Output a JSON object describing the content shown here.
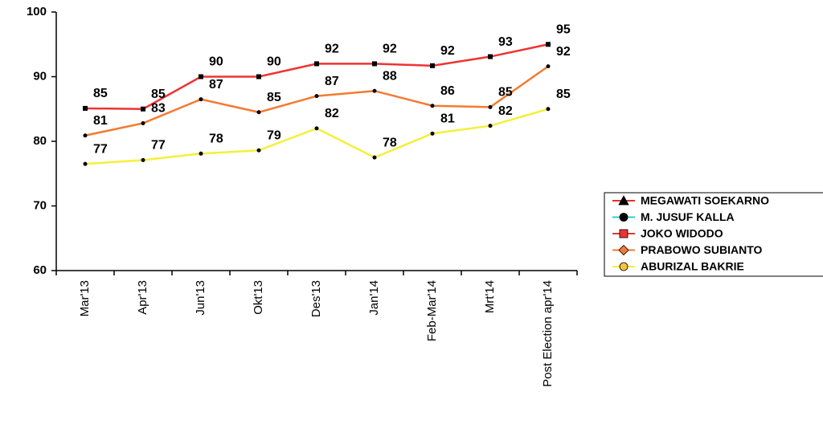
{
  "chart_data": {
    "type": "line",
    "categories": [
      "Mar'13",
      "Apr'13",
      "Jun'13",
      "Okt'13",
      "Des'13",
      "Jan'14",
      "Feb-Mar'14",
      "Mrt'14",
      "Post Election apr'14"
    ],
    "ylim": [
      60,
      100
    ],
    "yticks": [
      60,
      70,
      80,
      90,
      100
    ],
    "legend": "right",
    "series": [
      {
        "name": "MEGAWATI SOEKARNO",
        "color": "#e53030",
        "marker": "triangle",
        "marker_color": "#000000",
        "values": [
          null,
          null,
          null,
          null,
          null,
          null,
          null,
          null,
          null
        ]
      },
      {
        "name": "M. JUSUF KALLA",
        "color": "#33cccc",
        "marker": "circle",
        "marker_color": "#000000",
        "values": [
          null,
          null,
          null,
          null,
          null,
          null,
          null,
          null,
          null
        ]
      },
      {
        "name": "JOKO WIDODO",
        "color": "#ee3333",
        "marker": "square",
        "marker_color": "#ee3333",
        "values": [
          85.1,
          85.0,
          90.0,
          90.0,
          92.0,
          92.0,
          91.7,
          93.1,
          95.0
        ],
        "value_labels": [
          "85",
          "85",
          "90",
          "90",
          "92",
          "92",
          "92",
          "93",
          "95"
        ]
      },
      {
        "name": "PRABOWO SUBIANTO",
        "color": "#f47a30",
        "marker": "diamond",
        "marker_color": "#f47a30",
        "values": [
          80.9,
          82.8,
          86.5,
          84.5,
          87.0,
          87.8,
          85.5,
          85.3,
          91.6
        ],
        "value_labels": [
          "81",
          "83",
          "87",
          "85",
          "87",
          "88",
          "86",
          "85",
          "92"
        ]
      },
      {
        "name": "ABURIZAL BAKRIE",
        "color": "#f5ef3a",
        "marker": "circle",
        "marker_color": "#f5c242",
        "values": [
          76.5,
          77.1,
          78.1,
          78.6,
          82.0,
          77.5,
          81.2,
          82.4,
          85.0
        ],
        "value_labels": [
          "77",
          "77",
          "78",
          "79",
          "82",
          "78",
          "81",
          "82",
          "85"
        ]
      }
    ]
  }
}
